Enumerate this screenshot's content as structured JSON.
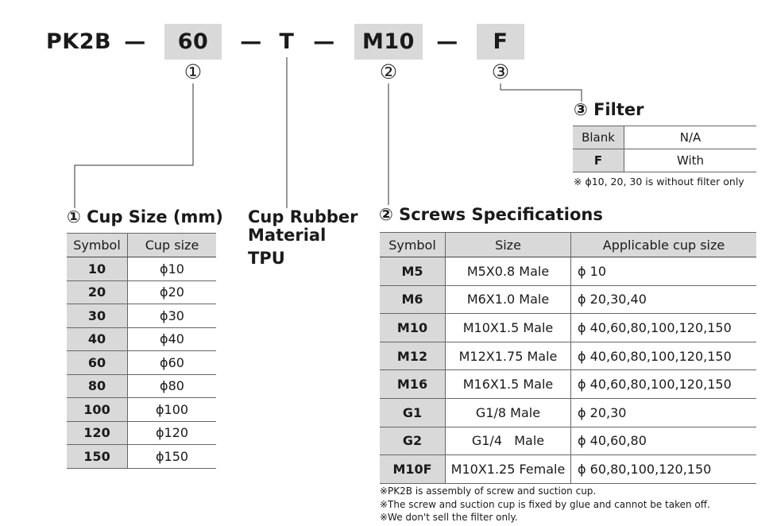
{
  "model": {
    "prefix": "PK2B",
    "dash": "—",
    "size": "60",
    "material_code": "T",
    "screw": "M10",
    "filter": "F",
    "mark1": "①",
    "mark2": "②",
    "mark3": "③"
  },
  "filter_section": {
    "title": "③ Filter",
    "rows": [
      {
        "symbol": "Blank",
        "value": "N/A"
      },
      {
        "symbol": "F",
        "value": "With"
      }
    ],
    "note": "※ ϕ10, 20, 30 is without filter only"
  },
  "cup_size_section": {
    "title": "① Cup Size (mm)",
    "headers": [
      "Symbol",
      "Cup size"
    ],
    "rows": [
      {
        "symbol": "10",
        "size": "ϕ10"
      },
      {
        "symbol": "20",
        "size": "ϕ20"
      },
      {
        "symbol": "30",
        "size": "ϕ30"
      },
      {
        "symbol": "40",
        "size": "ϕ40"
      },
      {
        "symbol": "60",
        "size": "ϕ60"
      },
      {
        "symbol": "80",
        "size": "ϕ80"
      },
      {
        "symbol": "100",
        "size": "ϕ100"
      },
      {
        "symbol": "120",
        "size": "ϕ120"
      },
      {
        "symbol": "150",
        "size": "ϕ150"
      }
    ]
  },
  "material_section": {
    "title_line1": "Cup Rubber",
    "title_line2": "Material",
    "value": "TPU"
  },
  "screw_section": {
    "title": "② Screws Specifications",
    "headers": [
      "Symbol",
      "Size",
      "Applicable cup size"
    ],
    "rows": [
      {
        "symbol": "M5",
        "size": "M5X0.8 Male",
        "cups": "ϕ 10"
      },
      {
        "symbol": "M6",
        "size": "M6X1.0 Male",
        "cups": "ϕ 20,30,40"
      },
      {
        "symbol": "M10",
        "size": "M10X1.5 Male",
        "cups": "ϕ 40,60,80,100,120,150"
      },
      {
        "symbol": "M12",
        "size": "M12X1.75 Male",
        "cups": "ϕ 40,60,80,100,120,150"
      },
      {
        "symbol": "M16",
        "size": "M16X1.5 Male",
        "cups": "ϕ 40,60,80,100,120,150"
      },
      {
        "symbol": "G1",
        "size": "G1/8 Male",
        "cups": "ϕ 20,30"
      },
      {
        "symbol": "G2",
        "size": "G1/4   Male",
        "cups": "ϕ 40,60,80"
      },
      {
        "symbol": "M10F",
        "size": "M10X1.25 Female",
        "cups": "ϕ 60,80,100,120,150"
      }
    ]
  },
  "notes": [
    "※PK2B is assembly of screw and suction cup.",
    "※The screw and suction cup is fixed by glue and cannot be taken off.",
    "※We don't sell the filter only."
  ]
}
